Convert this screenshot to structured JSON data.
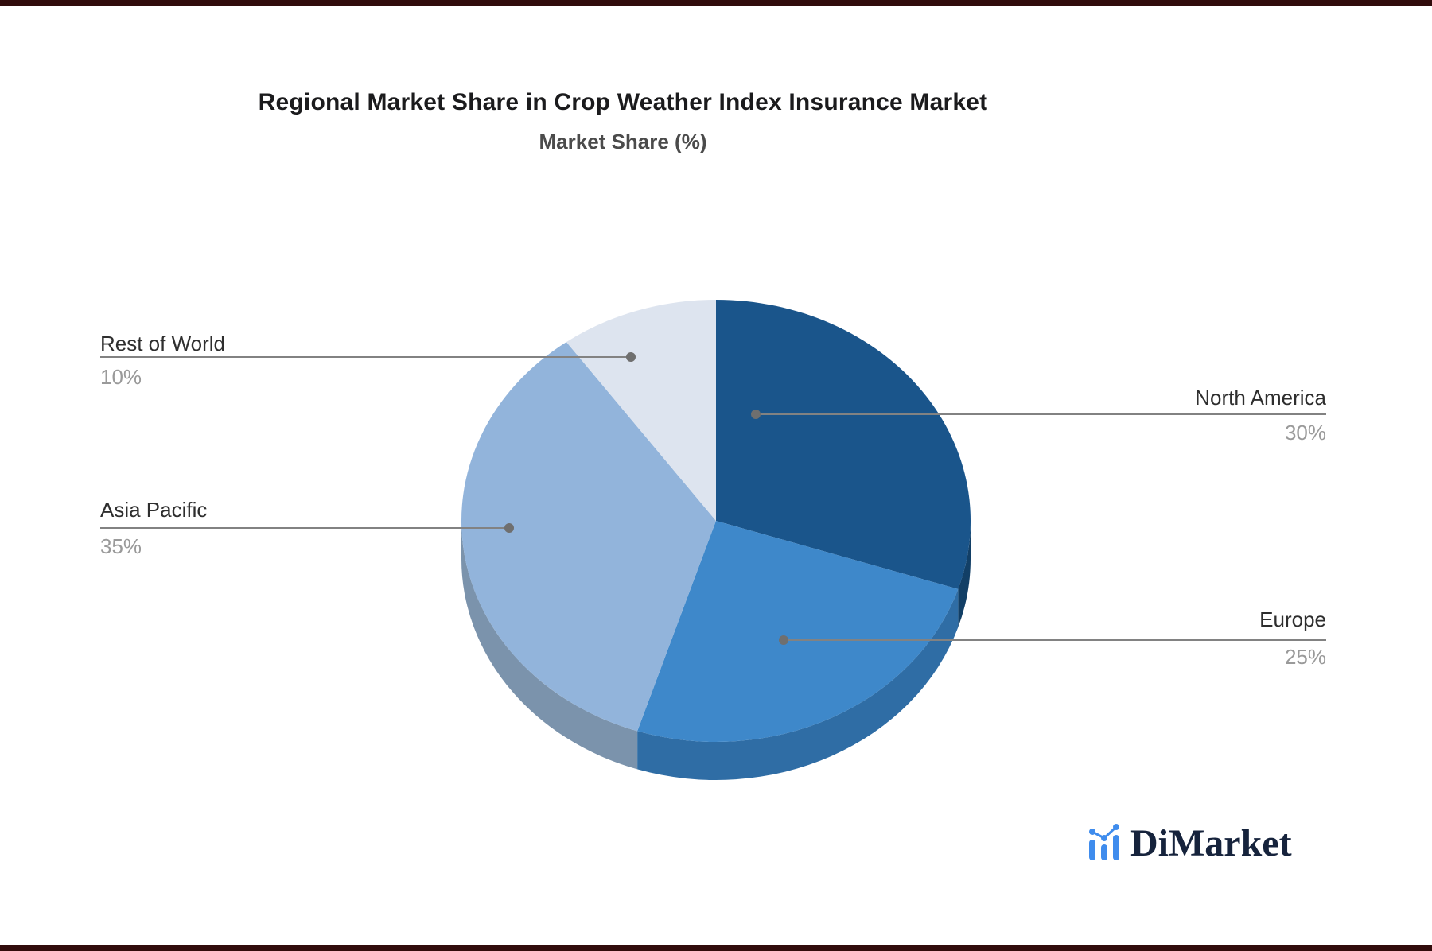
{
  "page": {
    "background": "#ffffff",
    "frame_bar_color": "#310c0c"
  },
  "chart_data": {
    "type": "pie",
    "style": "3d",
    "title": "Regional Market Share in Crop Weather Index Insurance Market",
    "subtitle": "Market Share (%)",
    "unit": "%",
    "start_angle": "top",
    "direction": "clockwise",
    "legend_position": "none",
    "labels": [
      "North America",
      "Europe",
      "Asia Pacific",
      "Rest of World"
    ],
    "values": [
      30,
      25,
      35,
      10
    ],
    "percent_labels": [
      "30%",
      "25%",
      "35%",
      "10%"
    ],
    "colors": [
      "#1a558b",
      "#3e88ca",
      "#92b4db",
      "#dde4ef"
    ],
    "side_colors": [
      "#123f66",
      "#2f6da5",
      "#7b93ac",
      "#c3cedd"
    ],
    "leader_line_color": "#828282",
    "leader_dot_color": "#6f6f6f",
    "label_text_color": "#2e2e2e",
    "percent_text_color": "#9a9a9a"
  },
  "branding": {
    "logo_text": "DiMarket",
    "logo_text_color": "#16233c",
    "logo_icon": "bar-chart-icon",
    "logo_icon_color": "#3f8ced"
  }
}
